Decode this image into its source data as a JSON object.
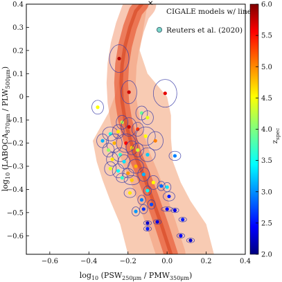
{
  "chart_data": {
    "type": "scatter",
    "xlabel": "log₁₀ (PSW₂₅₀μm / PMW₃₅₀μm)",
    "ylabel": "log₁₀ (LABOCA₈₇₀μm / PLW₅₀₀μm)",
    "xlim": [
      -0.72,
      0.4
    ],
    "ylim": [
      -0.68,
      0.4
    ],
    "xticks": [
      -0.6,
      -0.4,
      -0.2,
      0.0,
      0.2,
      0.4
    ],
    "yticks": [
      -0.6,
      -0.5,
      -0.4,
      -0.3,
      -0.2,
      -0.1,
      0.0,
      0.1,
      0.2,
      0.3,
      0.4
    ],
    "legend_position": "top-right",
    "legend": [
      "CIGALE models w/ lines",
      "Reuters et al. (2020)"
    ],
    "colorbar": {
      "label": "z_spec",
      "range": [
        2.0,
        6.0
      ],
      "ticks": [
        2.0,
        2.5,
        3.0,
        3.5,
        4.0,
        4.5,
        5.0,
        5.5,
        6.0
      ],
      "colormap": "jet"
    },
    "model_band": {
      "name": "CIGALE models w/ lines",
      "color": "#e8633f",
      "centerline": [
        [
          0.02,
          -0.68
        ],
        [
          -0.03,
          -0.55
        ],
        [
          -0.08,
          -0.43
        ],
        [
          -0.12,
          -0.34
        ],
        [
          -0.16,
          -0.26
        ],
        [
          -0.19,
          -0.18
        ],
        [
          -0.215,
          -0.1
        ],
        [
          -0.23,
          -0.02
        ],
        [
          -0.235,
          0.06
        ],
        [
          -0.23,
          0.14
        ],
        [
          -0.215,
          0.22
        ],
        [
          -0.19,
          0.3
        ],
        [
          -0.16,
          0.37
        ],
        [
          -0.13,
          0.4
        ]
      ],
      "envelope": [
        [
          -0.38,
          -0.19
        ],
        [
          -0.36,
          -0.28
        ],
        [
          -0.33,
          -0.36
        ],
        [
          -0.29,
          -0.45
        ],
        [
          -0.24,
          -0.55
        ],
        [
          -0.2,
          -0.68
        ],
        [
          0.24,
          -0.68
        ],
        [
          0.2,
          -0.55
        ],
        [
          0.12,
          -0.45
        ],
        [
          0.07,
          -0.37
        ],
        [
          0.03,
          -0.28
        ],
        [
          0.02,
          -0.18
        ],
        [
          0.02,
          -0.08
        ],
        [
          0.0,
          0.0
        ],
        [
          -0.04,
          0.04
        ],
        [
          -0.1,
          0.1
        ],
        [
          -0.14,
          0.2
        ],
        [
          -0.12,
          0.3
        ],
        [
          -0.1,
          0.4
        ],
        [
          -0.14,
          0.4
        ],
        [
          -0.19,
          0.3
        ],
        [
          -0.23,
          0.16
        ],
        [
          -0.26,
          0.02
        ],
        [
          -0.3,
          -0.07
        ],
        [
          -0.34,
          -0.13
        ]
      ]
    },
    "series": [
      {
        "name": "Reuters et al. (2020)",
        "points": [
          {
            "x": -0.245,
            "y": 0.165,
            "z": 5.8,
            "ex": 0.05,
            "ey": 0.06
          },
          {
            "x": -0.195,
            "y": 0.02,
            "z": 5.7,
            "ex": 0.04,
            "ey": 0.05
          },
          {
            "x": -0.01,
            "y": 0.015,
            "z": 5.6,
            "ex": 0.06,
            "ey": 0.06
          },
          {
            "x": -0.355,
            "y": -0.045,
            "z": 4.5,
            "ex": 0.03,
            "ey": 0.03
          },
          {
            "x": -0.13,
            "y": -0.07,
            "z": 3.9,
            "ex": 0.03,
            "ey": 0.03
          },
          {
            "x": -0.1,
            "y": -0.09,
            "z": 4.4,
            "ex": 0.03,
            "ey": 0.03
          },
          {
            "x": -0.23,
            "y": -0.11,
            "z": 4.2,
            "ex": 0.03,
            "ey": 0.03
          },
          {
            "x": -0.195,
            "y": -0.13,
            "z": 5.7,
            "ex": 0.04,
            "ey": 0.04
          },
          {
            "x": -0.15,
            "y": -0.14,
            "z": 5.3,
            "ex": 0.03,
            "ey": 0.03
          },
          {
            "x": -0.29,
            "y": -0.16,
            "z": 3.6,
            "ex": 0.04,
            "ey": 0.03
          },
          {
            "x": -0.25,
            "y": -0.15,
            "z": 4.6,
            "ex": 0.03,
            "ey": 0.03
          },
          {
            "x": -0.11,
            "y": -0.17,
            "z": 4.5,
            "ex": 0.05,
            "ey": 0.04
          },
          {
            "x": -0.06,
            "y": -0.19,
            "z": 5.0,
            "ex": 0.04,
            "ey": 0.04
          },
          {
            "x": -0.33,
            "y": -0.19,
            "z": 3.2,
            "ex": 0.03,
            "ey": 0.03
          },
          {
            "x": -0.27,
            "y": -0.2,
            "z": 4.8,
            "ex": 0.04,
            "ey": 0.04
          },
          {
            "x": -0.21,
            "y": -0.2,
            "z": 5.5,
            "ex": 0.05,
            "ey": 0.04
          },
          {
            "x": -0.18,
            "y": -0.22,
            "z": 4.7,
            "ex": 0.03,
            "ey": 0.03
          },
          {
            "x": -0.15,
            "y": -0.23,
            "z": 4.3,
            "ex": 0.03,
            "ey": 0.03
          },
          {
            "x": -0.3,
            "y": -0.23,
            "z": 4.1,
            "ex": 0.03,
            "ey": 0.03
          },
          {
            "x": -0.24,
            "y": -0.25,
            "z": 3.7,
            "ex": 0.04,
            "ey": 0.03
          },
          {
            "x": -0.1,
            "y": -0.25,
            "z": 3.3,
            "ex": 0.04,
            "ey": 0.03
          },
          {
            "x": 0.04,
            "y": -0.255,
            "z": 3.0,
            "ex": 0.03,
            "ey": 0.02
          },
          {
            "x": -0.28,
            "y": -0.27,
            "z": 4.6,
            "ex": 0.03,
            "ey": 0.03
          },
          {
            "x": -0.22,
            "y": -0.28,
            "z": 3.4,
            "ex": 0.03,
            "ey": 0.03
          },
          {
            "x": -0.16,
            "y": -0.3,
            "z": 4.8,
            "ex": 0.04,
            "ey": 0.03
          },
          {
            "x": -0.29,
            "y": -0.31,
            "z": 4.4,
            "ex": 0.03,
            "ey": 0.03
          },
          {
            "x": -0.25,
            "y": -0.32,
            "z": 3.5,
            "ex": 0.03,
            "ey": 0.03
          },
          {
            "x": -0.2,
            "y": -0.33,
            "z": 4.9,
            "ex": 0.03,
            "ey": 0.02
          },
          {
            "x": -0.12,
            "y": -0.335,
            "z": 3.2,
            "ex": 0.03,
            "ey": 0.03
          },
          {
            "x": -0.23,
            "y": -0.35,
            "z": 3.7,
            "ex": 0.03,
            "ey": 0.02
          },
          {
            "x": -0.18,
            "y": -0.36,
            "z": 4.7,
            "ex": 0.04,
            "ey": 0.02
          },
          {
            "x": -0.07,
            "y": -0.37,
            "z": 4.5,
            "ex": 0.03,
            "ey": 0.03
          },
          {
            "x": -0.03,
            "y": -0.385,
            "z": 2.9,
            "ex": 0.02,
            "ey": 0.02
          },
          {
            "x": 0.0,
            "y": -0.39,
            "z": 3.4,
            "ex": 0.02,
            "ey": 0.02
          },
          {
            "x": -0.1,
            "y": -0.405,
            "z": 3.5,
            "ex": 0.02,
            "ey": 0.02
          },
          {
            "x": -0.19,
            "y": -0.415,
            "z": 4.6,
            "ex": 0.03,
            "ey": 0.02
          },
          {
            "x": 0.01,
            "y": -0.43,
            "z": 2.6,
            "ex": 0.03,
            "ey": 0.02
          },
          {
            "x": -0.13,
            "y": -0.445,
            "z": 3.0,
            "ex": 0.02,
            "ey": 0.02
          },
          {
            "x": -0.08,
            "y": -0.465,
            "z": 2.8,
            "ex": 0.02,
            "ey": 0.02
          },
          {
            "x": -0.12,
            "y": -0.485,
            "z": 2.7,
            "ex": 0.02,
            "ey": 0.02
          },
          {
            "x": 0.0,
            "y": -0.485,
            "z": 2.5,
            "ex": 0.03,
            "ey": 0.01
          },
          {
            "x": 0.04,
            "y": -0.49,
            "z": 2.4,
            "ex": 0.02,
            "ey": 0.01
          },
          {
            "x": -0.16,
            "y": -0.495,
            "z": 3.1,
            "ex": 0.02,
            "ey": 0.02
          },
          {
            "x": 0.08,
            "y": -0.53,
            "z": 2.6,
            "ex": 0.02,
            "ey": 0.01
          },
          {
            "x": -0.05,
            "y": -0.54,
            "z": 2.4,
            "ex": 0.02,
            "ey": 0.01
          },
          {
            "x": -0.1,
            "y": -0.545,
            "z": 2.3,
            "ex": 0.02,
            "ey": 0.01
          },
          {
            "x": -0.1,
            "y": -0.57,
            "z": 2.6,
            "ex": 0.02,
            "ey": 0.01
          },
          {
            "x": 0.07,
            "y": -0.6,
            "z": 2.5,
            "ex": 0.02,
            "ey": 0.01
          },
          {
            "x": 0.12,
            "y": -0.62,
            "z": 2.3,
            "ex": 0.02,
            "ey": 0.01
          }
        ]
      }
    ]
  }
}
